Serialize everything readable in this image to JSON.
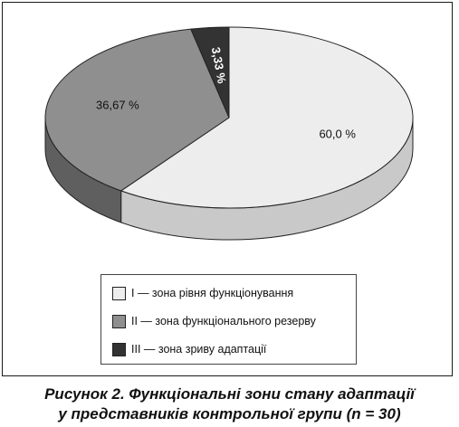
{
  "chart_data": {
    "type": "pie",
    "style": "3d-tilted",
    "categories": [
      "I — зона рівня функціонування",
      "II — зона функціонального резерву",
      "III — зона зриву адаптації"
    ],
    "values": [
      60.0,
      36.67,
      3.33
    ],
    "labels": [
      "60,0 %",
      "36,67 %",
      "3,33 %"
    ],
    "colors": [
      "#ededed",
      "#8f8f8f",
      "#333333"
    ],
    "legend_position": "bottom"
  },
  "caption": {
    "line1": "Рисунок 2. Функціональні зони стану адаптації",
    "line2": "у представників контрольної групи (n = 30)"
  }
}
